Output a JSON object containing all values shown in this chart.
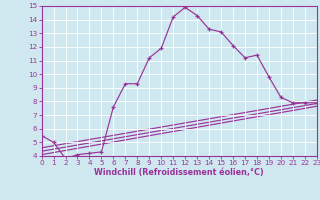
{
  "background_color": "#cfe8f0",
  "grid_color": "#ffffff",
  "line_color": "#993399",
  "xlabel": "Windchill (Refroidissement éolien,°C)",
  "xlim": [
    0,
    23
  ],
  "ylim": [
    4,
    15
  ],
  "yticks": [
    4,
    5,
    6,
    7,
    8,
    9,
    10,
    11,
    12,
    13,
    14,
    15
  ],
  "xticks": [
    0,
    1,
    2,
    3,
    4,
    5,
    6,
    7,
    8,
    9,
    10,
    11,
    12,
    13,
    14,
    15,
    16,
    17,
    18,
    19,
    20,
    21,
    22,
    23
  ],
  "line1_x": [
    0,
    1,
    2,
    3,
    4,
    5,
    6,
    7,
    8,
    9,
    10,
    11,
    12,
    13,
    14,
    15,
    16,
    17,
    18,
    19,
    20,
    21,
    22,
    23
  ],
  "line1_y": [
    5.5,
    5.0,
    3.8,
    4.1,
    4.2,
    4.3,
    7.6,
    9.3,
    9.3,
    11.2,
    11.9,
    14.2,
    14.9,
    14.3,
    13.3,
    13.1,
    12.1,
    11.2,
    11.4,
    9.8,
    8.3,
    7.9,
    7.9,
    7.9
  ],
  "line2_x": [
    0,
    23
  ],
  "line2_y": [
    4.1,
    7.65
  ],
  "line3_x": [
    0,
    23
  ],
  "line3_y": [
    4.35,
    7.85
  ],
  "line4_x": [
    0,
    23
  ],
  "line4_y": [
    4.6,
    8.1
  ],
  "tick_fontsize": 5.2,
  "xlabel_fontsize": 5.8,
  "linewidth": 0.85,
  "marker_size": 3.0
}
